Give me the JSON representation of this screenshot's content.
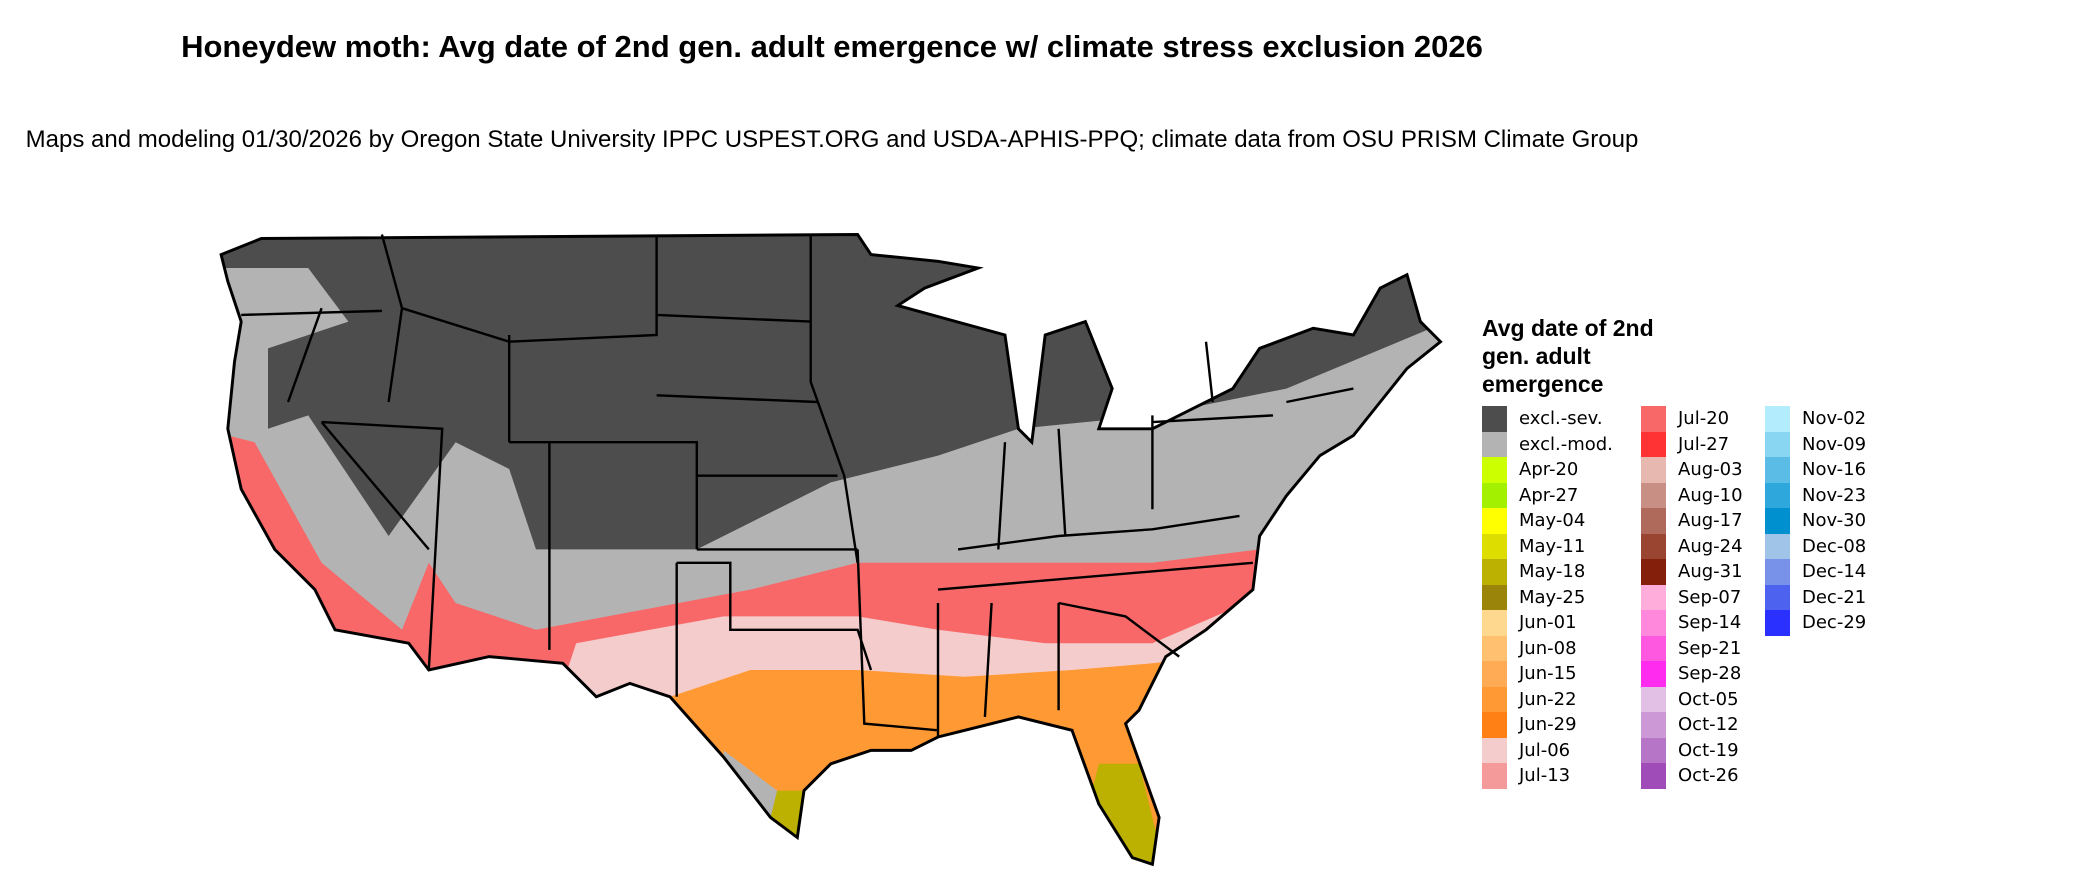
{
  "title": "Honeydew moth: Avg date of 2nd gen. adult emergence w/ climate stress exclusion 2026",
  "subtitle": "Maps and modeling 01/30/2026 by Oregon State University IPPC USPEST.ORG and USDA-APHIS-PPQ; climate data from OSU PRISM Climate Group",
  "legend": {
    "title": "Avg date of 2nd gen. adult emergence",
    "columns": [
      [
        {
          "label": "excl.-sev.",
          "color": "#4d4d4d"
        },
        {
          "label": "excl.-mod.",
          "color": "#b3b3b3"
        },
        {
          "label": "Apr-20",
          "color": "#ccff00"
        },
        {
          "label": "Apr-27",
          "color": "#a3f000"
        },
        {
          "label": "May-04",
          "color": "#ffff00"
        },
        {
          "label": "May-11",
          "color": "#dddd00"
        },
        {
          "label": "May-18",
          "color": "#bcb000"
        },
        {
          "label": "May-25",
          "color": "#9a850a"
        },
        {
          "label": "Jun-01",
          "color": "#ffd890"
        },
        {
          "label": "Jun-08",
          "color": "#ffc070"
        },
        {
          "label": "Jun-15",
          "color": "#ffaa55"
        },
        {
          "label": "Jun-22",
          "color": "#ff9933"
        },
        {
          "label": "Jun-29",
          "color": "#ff8015"
        },
        {
          "label": "Jul-06",
          "color": "#f5cccc"
        },
        {
          "label": "Jul-13",
          "color": "#f59a9a"
        }
      ],
      [
        {
          "label": "Jul-20",
          "color": "#f86868"
        },
        {
          "label": "Jul-27",
          "color": "#ff3333"
        },
        {
          "label": "Aug-03",
          "color": "#e6b8b0"
        },
        {
          "label": "Aug-10",
          "color": "#c89084"
        },
        {
          "label": "Aug-17",
          "color": "#b06a5c"
        },
        {
          "label": "Aug-24",
          "color": "#9a4432"
        },
        {
          "label": "Aug-31",
          "color": "#841f0c"
        },
        {
          "label": "Sep-07",
          "color": "#ffaedb"
        },
        {
          "label": "Sep-14",
          "color": "#ff88dd"
        },
        {
          "label": "Sep-21",
          "color": "#ff58e0"
        },
        {
          "label": "Sep-28",
          "color": "#ff2cf0"
        },
        {
          "label": "Oct-05",
          "color": "#e2c0e6"
        },
        {
          "label": "Oct-12",
          "color": "#cc99d6"
        },
        {
          "label": "Oct-19",
          "color": "#b675c6"
        },
        {
          "label": "Oct-26",
          "color": "#a04cb8"
        }
      ],
      [
        {
          "label": "Nov-02",
          "color": "#b3ecfc"
        },
        {
          "label": "Nov-09",
          "color": "#88d6f2"
        },
        {
          "label": "Nov-16",
          "color": "#5bbde6"
        },
        {
          "label": "Nov-23",
          "color": "#2ea8dc"
        },
        {
          "label": "Nov-30",
          "color": "#0090d0"
        },
        {
          "label": "Dec-08",
          "color": "#a0c4e8"
        },
        {
          "label": "Dec-14",
          "color": "#7892ea"
        },
        {
          "label": "Dec-21",
          "color": "#4e62f0"
        },
        {
          "label": "Dec-29",
          "color": "#2a30ff"
        }
      ]
    ]
  },
  "map_colors": {
    "outline": "#000000",
    "excluded_severe": "#4d4d4d",
    "excluded_moderate": "#b3b3b3"
  }
}
